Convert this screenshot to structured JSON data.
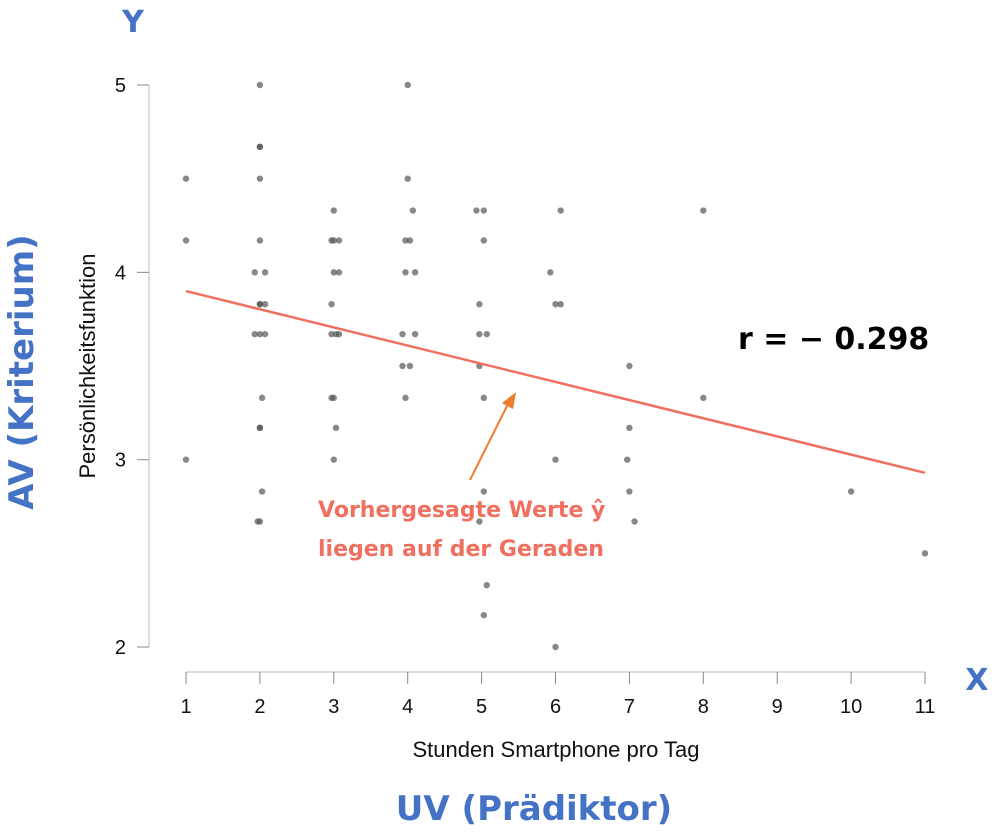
{
  "labels": {
    "y_letter": "Y",
    "x_letter": "X",
    "av": "AV (Kriterium)",
    "uv": "UV (Prädiktor)",
    "r_value": "r =  − 0.298",
    "annotation_line1": "Vorhergesagte Werte ŷ",
    "annotation_line2": "liegen auf der Geraden"
  },
  "colors": {
    "points": "#555555",
    "regression": "#f07060",
    "arrow": "#ed7d31",
    "blue": "#4472c4"
  },
  "chart_data": {
    "type": "scatter",
    "xlabel": "Stunden Smartphone pro Tag",
    "ylabel": "Persönlichkeitsfunktion",
    "xlim": [
      1,
      11
    ],
    "ylim": [
      2,
      5
    ],
    "xticks": [
      "1",
      "2",
      "3",
      "4",
      "5",
      "6",
      "7",
      "8",
      "9",
      "10",
      "11"
    ],
    "yticks": [
      "2",
      "3",
      "4",
      "5"
    ],
    "points": [
      [
        1,
        4.5
      ],
      [
        1,
        4.17
      ],
      [
        1,
        3
      ],
      [
        2,
        5
      ],
      [
        2,
        4.67
      ],
      [
        2,
        4.67
      ],
      [
        2,
        4.5
      ],
      [
        1.93,
        4
      ],
      [
        2.07,
        4
      ],
      [
        2,
        4.17
      ],
      [
        2,
        3.83
      ],
      [
        2,
        3.83
      ],
      [
        2.07,
        3.83
      ],
      [
        1.93,
        3.67
      ],
      [
        2,
        3.67
      ],
      [
        2.07,
        3.67
      ],
      [
        2.03,
        3.33
      ],
      [
        2,
        3.17
      ],
      [
        2,
        3.17
      ],
      [
        2.03,
        2.83
      ],
      [
        1.97,
        2.67
      ],
      [
        2,
        2.67
      ],
      [
        3,
        4.33
      ],
      [
        2.97,
        4.17
      ],
      [
        3,
        4.17
      ],
      [
        3.07,
        4.17
      ],
      [
        3,
        4
      ],
      [
        3.07,
        4
      ],
      [
        2.97,
        3.83
      ],
      [
        2.97,
        3.67
      ],
      [
        3.03,
        3.67
      ],
      [
        3.07,
        3.67
      ],
      [
        2.97,
        3.33
      ],
      [
        3,
        3.33
      ],
      [
        3.03,
        3.17
      ],
      [
        3,
        3
      ],
      [
        4,
        5
      ],
      [
        4,
        4.5
      ],
      [
        4.07,
        4.33
      ],
      [
        3.97,
        4.17
      ],
      [
        4.03,
        4.17
      ],
      [
        3.97,
        4
      ],
      [
        4.1,
        4
      ],
      [
        3.93,
        3.67
      ],
      [
        4.1,
        3.67
      ],
      [
        3.93,
        3.5
      ],
      [
        4.03,
        3.5
      ],
      [
        3.97,
        3.33
      ],
      [
        4.93,
        4.33
      ],
      [
        5.03,
        4.33
      ],
      [
        5.03,
        4.17
      ],
      [
        4.97,
        3.83
      ],
      [
        4.97,
        3.67
      ],
      [
        5.07,
        3.67
      ],
      [
        4.97,
        3.5
      ],
      [
        5.03,
        3.33
      ],
      [
        5.03,
        2.83
      ],
      [
        4.97,
        2.67
      ],
      [
        5.07,
        2.33
      ],
      [
        5.03,
        2.17
      ],
      [
        6.07,
        4.33
      ],
      [
        5.93,
        4
      ],
      [
        6,
        3.83
      ],
      [
        6.07,
        3.83
      ],
      [
        6,
        3
      ],
      [
        6,
        2
      ],
      [
        7,
        3.5
      ],
      [
        7,
        3.17
      ],
      [
        6.97,
        3
      ],
      [
        7,
        2.83
      ],
      [
        7.07,
        2.67
      ],
      [
        8,
        4.33
      ],
      [
        8,
        3.33
      ],
      [
        10,
        2.83
      ],
      [
        11,
        2.5
      ]
    ],
    "regression_line": {
      "x": [
        1,
        11
      ],
      "y": [
        3.9,
        2.93
      ]
    },
    "r": -0.298
  }
}
